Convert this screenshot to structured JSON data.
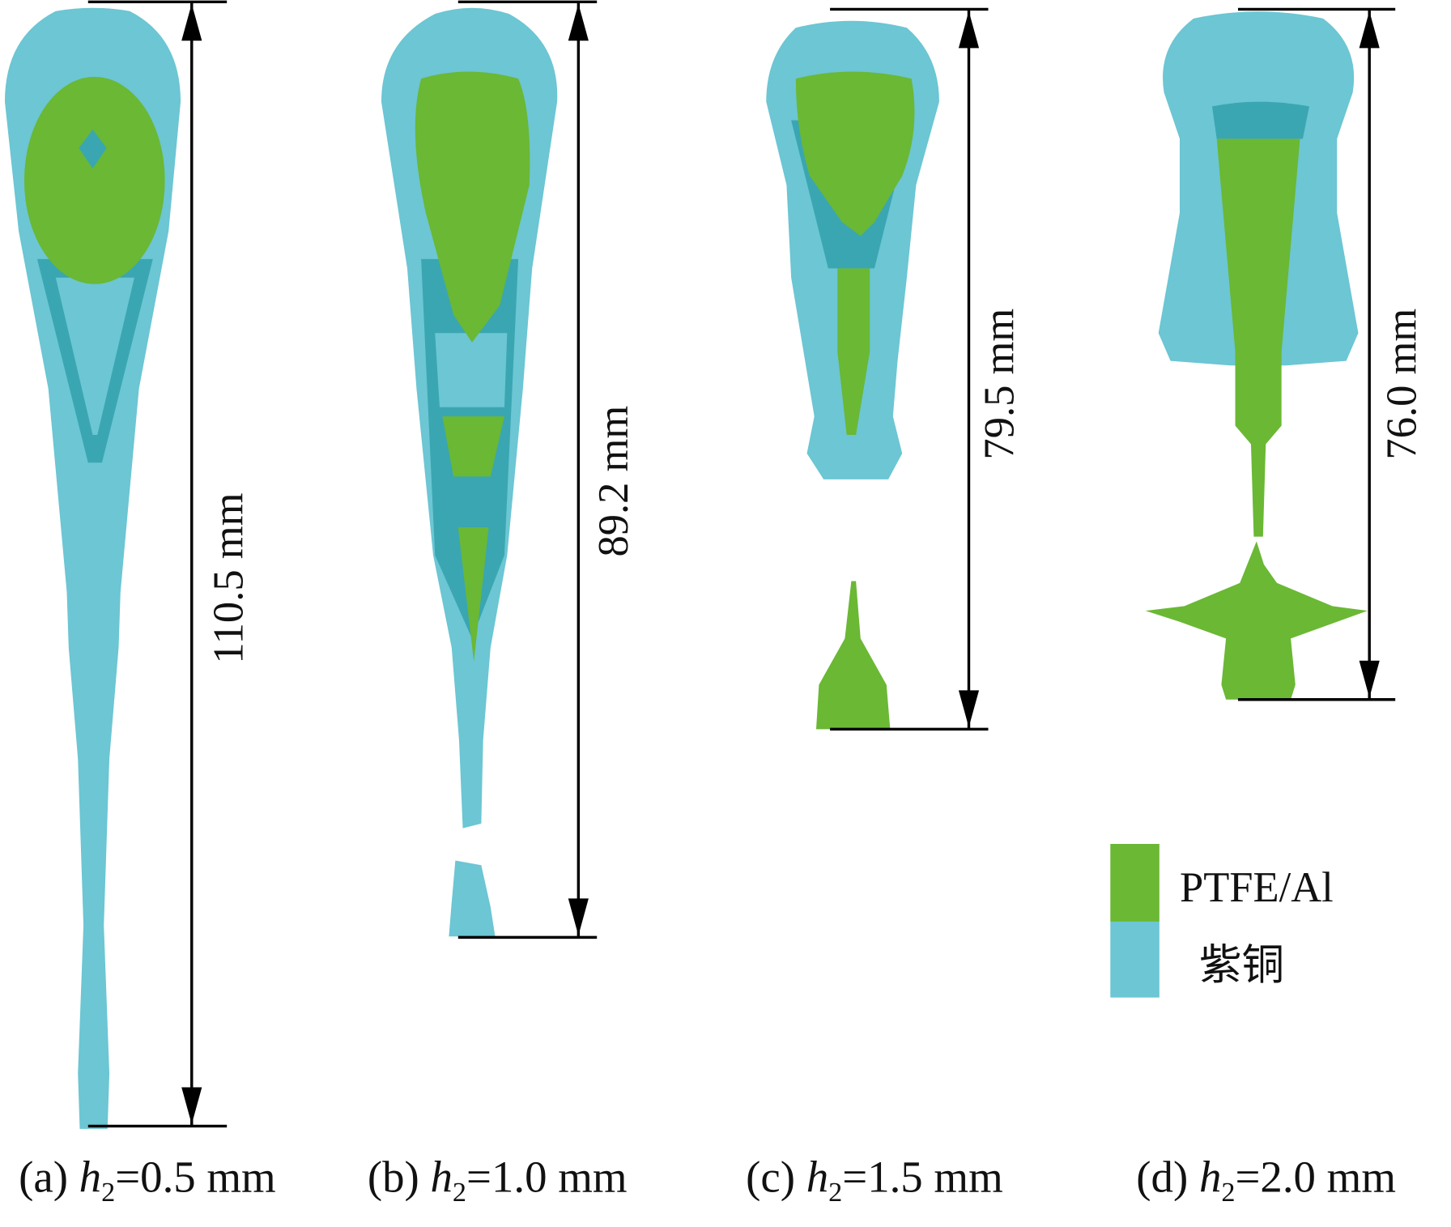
{
  "panels": [
    {
      "label": "(a)",
      "symbol": "h",
      "subscript": "2",
      "condition": "=0.5 mm",
      "length": "110.5 mm"
    },
    {
      "label": "(b)",
      "symbol": "h",
      "subscript": "2",
      "condition": "=1.0 mm",
      "length": "89.2 mm"
    },
    {
      "label": "(c)",
      "symbol": "h",
      "subscript": "2",
      "condition": "=1.5 mm",
      "length": "79.5 mm"
    },
    {
      "label": "(d)",
      "symbol": "h",
      "subscript": "2",
      "condition": "=2.0 mm",
      "length": "76.0 mm"
    }
  ],
  "legend": [
    "PTFE/Al",
    "紫铜"
  ]
}
